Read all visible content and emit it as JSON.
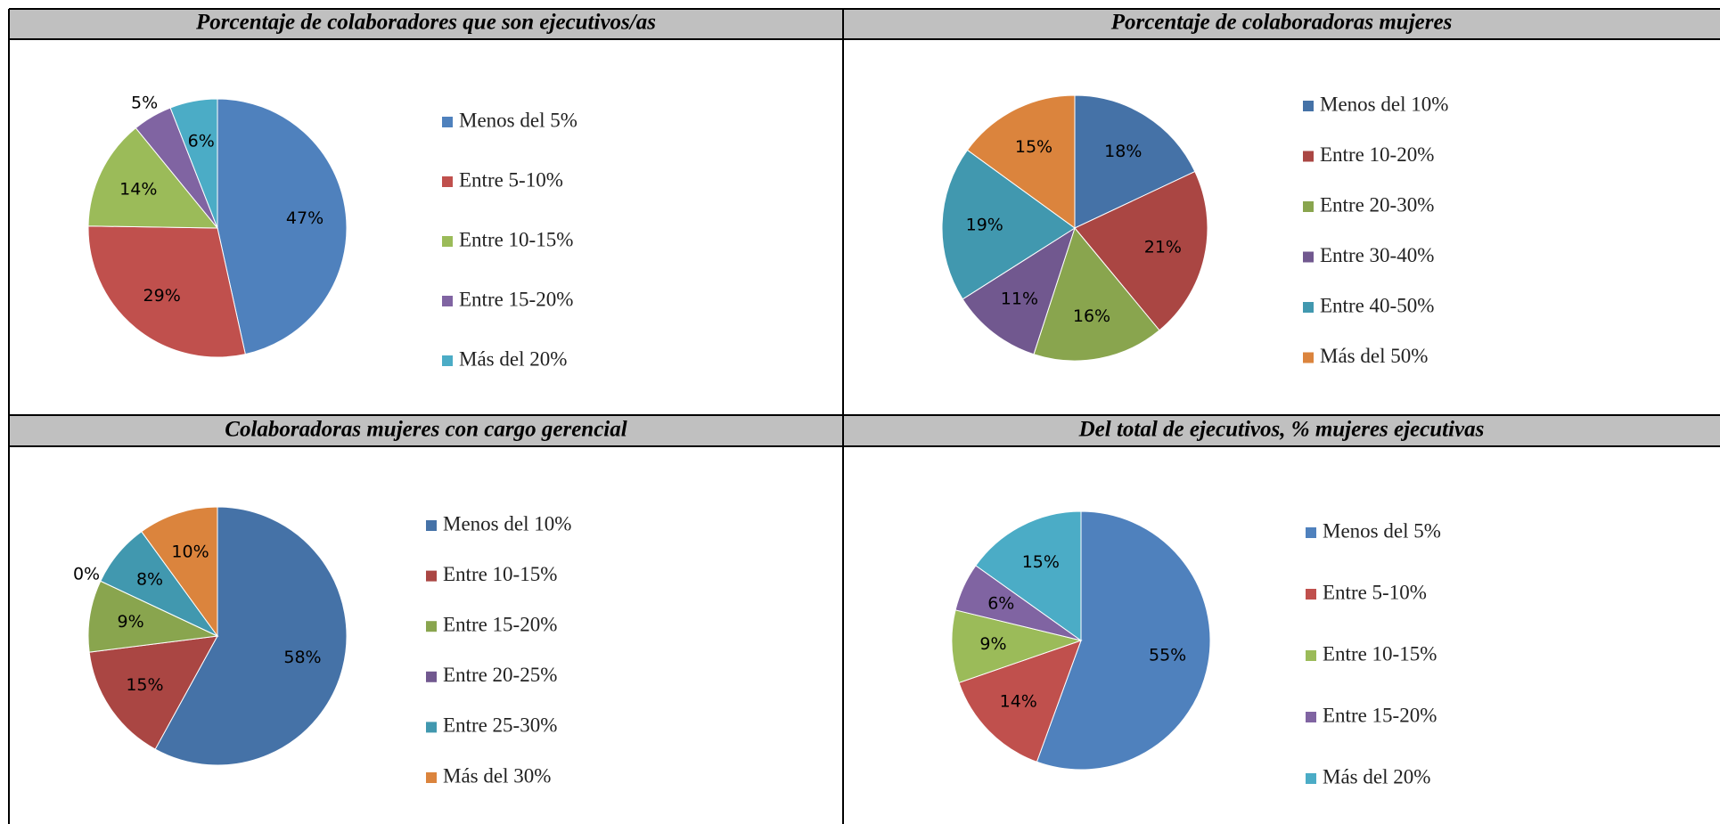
{
  "chart_data": [
    {
      "type": "pie",
      "title": "Porcentaje de colaboradores que son ejecutivos/as",
      "categories": [
        "Menos del 5%",
        "Entre 5-10%",
        "Entre 10-15%",
        "Entre 15-20%",
        "Más del 20%"
      ],
      "values": [
        47,
        29,
        14,
        5,
        6
      ],
      "value_labels": [
        "47%",
        "29%",
        "14%",
        "5%",
        "6%"
      ],
      "colors": [
        "#4F81BD",
        "#C0504D",
        "#9BBB59",
        "#8064A2",
        "#4BACC6"
      ]
    },
    {
      "type": "pie",
      "title": "Porcentaje de colaboradoras mujeres",
      "categories": [
        "Menos del 10%",
        "Entre 10-20%",
        "Entre 20-30%",
        "Entre 30-40%",
        "Entre 40-50%",
        "Más del 50%"
      ],
      "values": [
        18,
        21,
        16,
        11,
        19,
        15
      ],
      "value_labels": [
        "18%",
        "21%",
        "16%",
        "11%",
        "19%",
        "15%"
      ],
      "colors": [
        "#4572A7",
        "#AA4643",
        "#89A54E",
        "#71588F",
        "#4198AF",
        "#DB843D"
      ]
    },
    {
      "type": "pie",
      "title": "Colaboradoras mujeres con cargo gerencial",
      "categories": [
        "Menos del 10%",
        "Entre 10-15%",
        "Entre 15-20%",
        "Entre 20-25%",
        "Entre 25-30%",
        "Más del 30%"
      ],
      "values": [
        58,
        15,
        9,
        0,
        8,
        10
      ],
      "value_labels": [
        "58%",
        "15%",
        "9%",
        "0%",
        "8%",
        "10%"
      ],
      "colors": [
        "#4572A7",
        "#AA4643",
        "#89A54E",
        "#71588F",
        "#4198AF",
        "#DB843D"
      ]
    },
    {
      "type": "pie",
      "title": "Del total de ejecutivos, % mujeres ejecutivas",
      "categories": [
        "Menos del 5%",
        "Entre 5-10%",
        "Entre 10-15%",
        "Entre 15-20%",
        "Más del 20%"
      ],
      "values": [
        55,
        14,
        9,
        6,
        15
      ],
      "value_labels": [
        "55%",
        "14%",
        "9%",
        "6%",
        "15%"
      ],
      "colors": [
        "#4F81BD",
        "#C0504D",
        "#9BBB59",
        "#8064A2",
        "#4BACC6"
      ]
    }
  ]
}
